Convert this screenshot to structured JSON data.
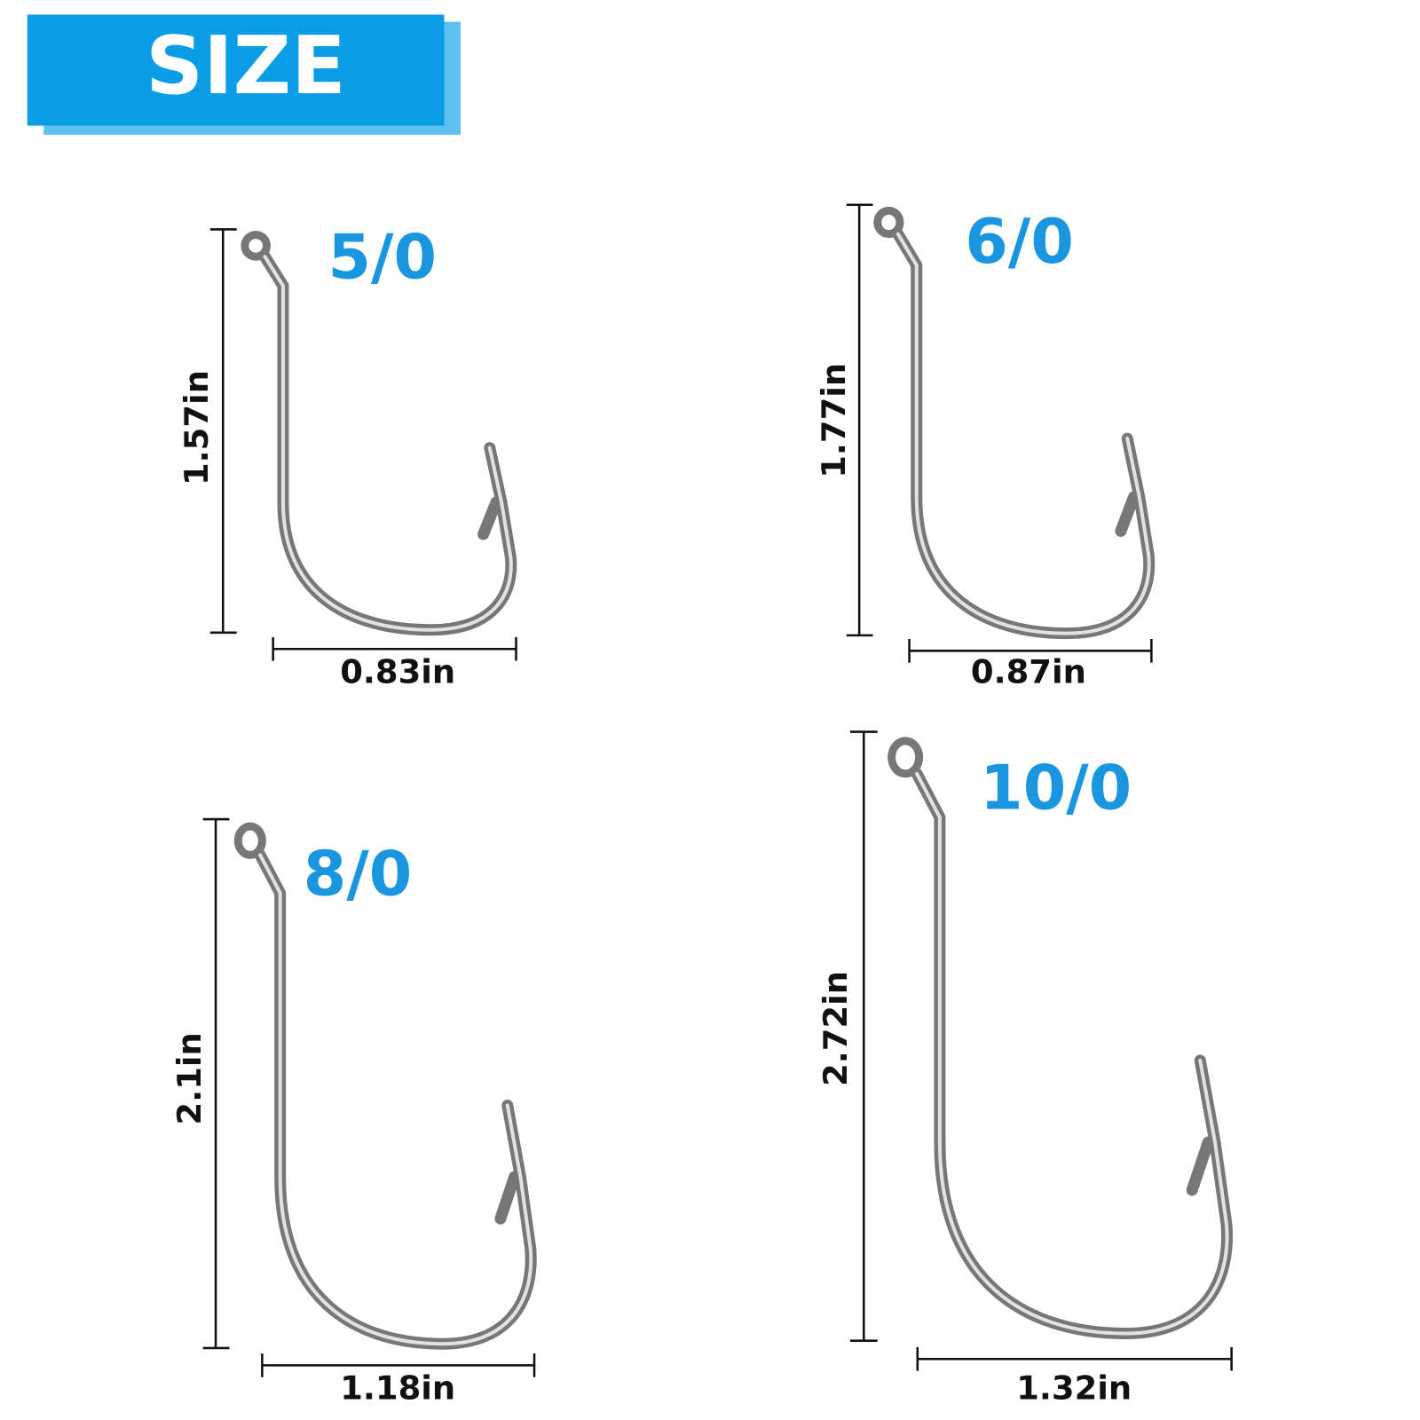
{
  "header": {
    "title": "SIZE"
  },
  "hooks": [
    {
      "size": "5/0",
      "height": "1.57in",
      "width": "0.83in"
    },
    {
      "size": "6/0",
      "height": "1.77in",
      "width": "0.87in"
    },
    {
      "size": "8/0",
      "height": "2.1in",
      "width": "1.18in"
    },
    {
      "size": "10/0",
      "height": "2.72in",
      "width": "1.32in"
    }
  ]
}
